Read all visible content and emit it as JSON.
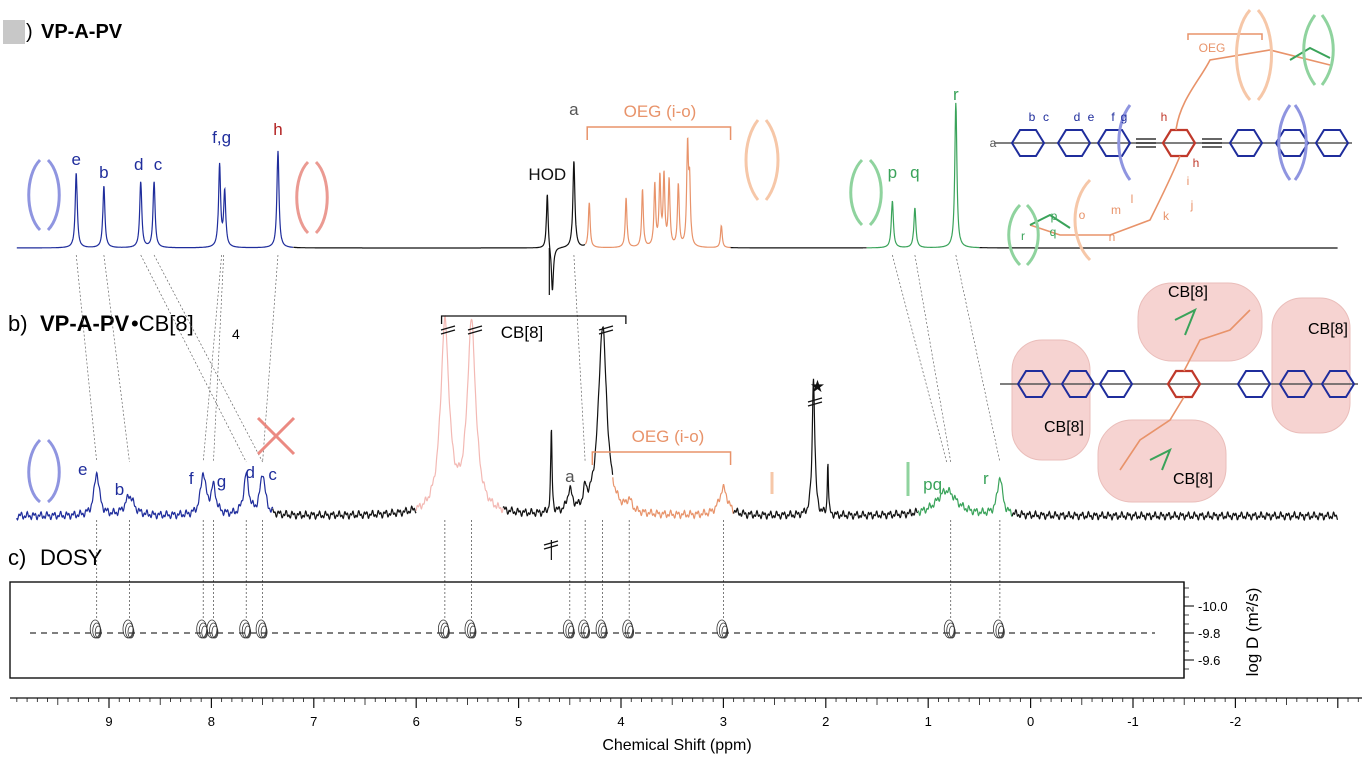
{
  "chart_data": {
    "type": "line",
    "xlabel": "Chemical Shift (ppm)",
    "xlim": [
      9.9,
      -2.9
    ],
    "x_ticks": [
      "9",
      "8",
      "7",
      "6",
      "5",
      "4",
      "3",
      "2",
      "1",
      "0",
      "-1",
      "-2"
    ],
    "panels": [
      {
        "id": "a",
        "title_prefix": ")",
        "title": "VP-A-PV",
        "peaks": [
          {
            "label": "e",
            "ppm": 9.32,
            "color": "#1f2d9c",
            "height": 0.75
          },
          {
            "label": "b",
            "ppm": 9.05,
            "color": "#1f2d9c",
            "height": 0.62
          },
          {
            "label": "d",
            "ppm": 8.69,
            "color": "#1f2d9c",
            "height": 0.66
          },
          {
            "label": "c",
            "ppm": 8.56,
            "color": "#1f2d9c",
            "height": 0.66
          },
          {
            "label": "f,g",
            "ppm": 7.9,
            "color": "#1f2d9c",
            "height": 0.82
          },
          {
            "label": "h",
            "ppm": 7.35,
            "color": "#b22222",
            "height": 0.97
          },
          {
            "label": "HOD",
            "ppm": 4.7,
            "color": "#111111",
            "height": 0.56
          },
          {
            "label": "a",
            "ppm": 4.46,
            "color": "#555555",
            "height": 0.87
          },
          {
            "label": "p",
            "ppm": 1.35,
            "color": "#3aa35a",
            "height": 0.47
          },
          {
            "label": "q",
            "ppm": 1.13,
            "color": "#3aa35a",
            "height": 0.4
          },
          {
            "label": "r",
            "ppm": 0.73,
            "color": "#3aa35a",
            "height": 1.45
          }
        ],
        "band": {
          "label": "OEG (i-o)",
          "from": 4.33,
          "to": 2.93,
          "color": "#e8936a"
        }
      },
      {
        "id": "b",
        "title_prefix": "b)",
        "title": "VP-A-PV",
        "title_suffix": "•CB[8]",
        "title_subscript": "4",
        "peaks": [
          {
            "label": "e",
            "ppm": 9.12,
            "color": "#1f2d9c",
            "height": 0.48
          },
          {
            "label": "b",
            "ppm": 8.8,
            "color": "#1f2d9c",
            "height": 0.22
          },
          {
            "label": "f",
            "ppm": 8.08,
            "color": "#1f2d9c",
            "height": 0.46
          },
          {
            "label": "g",
            "ppm": 7.98,
            "color": "#1f2d9c",
            "height": 0.3
          },
          {
            "label": "d",
            "ppm": 7.66,
            "color": "#1f2d9c",
            "height": 0.44
          },
          {
            "label": "c",
            "ppm": 7.5,
            "color": "#1f2d9c",
            "height": 0.46
          },
          {
            "label": "a",
            "ppm": 4.5,
            "color": "#555555",
            "height": 0.24
          },
          {
            "label": "★",
            "ppm": 2.12,
            "color": "#111111",
            "height": 1.55
          },
          {
            "label": "pq",
            "ppm": 0.82,
            "color": "#3aa35a",
            "height": 0.28
          },
          {
            "label": "r",
            "ppm": 0.3,
            "color": "#3aa35a",
            "height": 0.42
          }
        ],
        "cb8": {
          "label": "CB[8]",
          "from": 5.85,
          "to": 4.05,
          "peaks_ppm": [
            5.72,
            5.46,
            4.18
          ]
        },
        "band": {
          "label": "OEG (i-o)",
          "from": 4.28,
          "to": 2.93,
          "color": "#e8936a"
        },
        "struct_labels": [
          "CB[8]",
          "CB[8]",
          "CB[8]",
          "CB[8]"
        ]
      },
      {
        "id": "c",
        "title_prefix": "c)",
        "title": "DOSY",
        "ylabel": "log D (m²/s)",
        "y_ticks": [
          "-10.0",
          "-9.8",
          "-9.6"
        ],
        "logD_all": -9.8,
        "ppm_spots": [
          9.12,
          8.8,
          8.08,
          7.98,
          7.66,
          7.5,
          5.72,
          5.46,
          4.5,
          4.35,
          4.18,
          3.92,
          3.0,
          0.78,
          0.3
        ]
      }
    ],
    "structure_a_labels": [
      "OEG",
      "b",
      "c",
      "d",
      "e",
      "f",
      "g",
      "h",
      "h",
      "a",
      "p",
      "q",
      "r",
      "o",
      "m",
      "n",
      "l",
      "k",
      "j",
      "i"
    ]
  },
  "colors": {
    "blue": "#1f2d9c",
    "red": "#c0392b",
    "green": "#3aa35a",
    "orange": "#e8936a",
    "pink": "#f3b9b4"
  }
}
